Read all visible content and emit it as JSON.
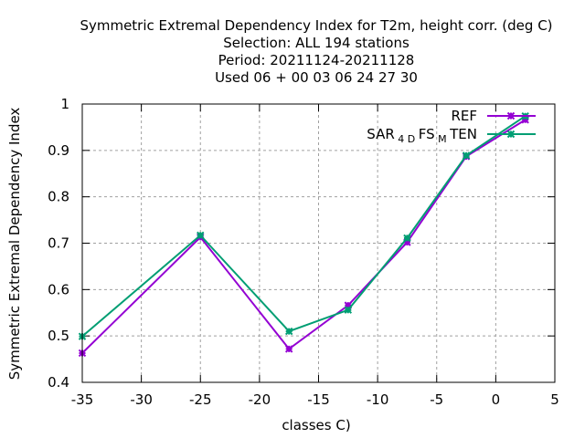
{
  "chart_data": {
    "type": "line",
    "title_lines": [
      "Symmetric Extremal Dependency Index  for T2m, height corr. (deg C)",
      "Selection: ALL    194 stations",
      "Period: 20211124-20211128",
      "Used  06 + 00 03 06 24 27 30"
    ],
    "xlabel": "classes C)",
    "ylabel": "Symmetric Extremal Dependency Index",
    "xlim": [
      -35,
      5
    ],
    "ylim": [
      0.4,
      1.0
    ],
    "x_ticks": [
      -35,
      -30,
      -25,
      -20,
      -15,
      -10,
      -5,
      0,
      5
    ],
    "x_tick_labels": [
      "-35",
      "-30",
      "-25",
      "-20",
      "-15",
      "-10",
      "-5",
      "0",
      "5"
    ],
    "y_ticks": [
      0.4,
      0.5,
      0.6,
      0.7,
      0.8,
      0.9,
      1.0
    ],
    "y_tick_labels": [
      "0.4",
      "0.5",
      "0.6",
      "0.7",
      "0.8",
      "0.9",
      "1"
    ],
    "grid": true,
    "legend_position": "top-right",
    "series": [
      {
        "name": "REF",
        "color": "#9400d3",
        "x": [
          -35,
          -25,
          -17.5,
          -12.5,
          -7.5,
          -2.5,
          2.5
        ],
        "y": [
          0.463,
          0.713,
          0.472,
          0.566,
          0.702,
          0.887,
          0.966
        ]
      },
      {
        "name": "SAR_4D FS_M TEN",
        "name_parts": [
          {
            "text": "SAR",
            "sub": false
          },
          {
            "text": "4 D",
            "sub": true
          },
          {
            "text": "FS",
            "sub": false
          },
          {
            "text": "M",
            "sub": true
          },
          {
            "text": "TEN",
            "sub": false
          }
        ],
        "color": "#009e73",
        "x": [
          -35,
          -25,
          -17.5,
          -12.5,
          -7.5,
          -2.5,
          2.5
        ],
        "y": [
          0.499,
          0.717,
          0.51,
          0.556,
          0.711,
          0.889,
          0.974
        ]
      }
    ]
  }
}
